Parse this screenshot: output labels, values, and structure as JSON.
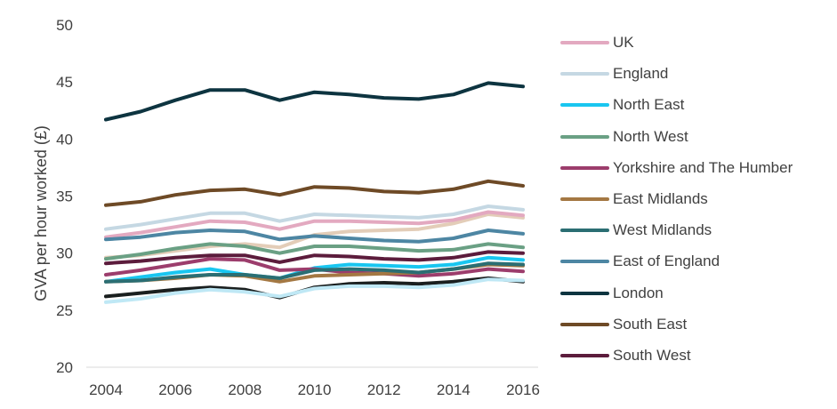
{
  "chart_data": {
    "type": "line",
    "ylabel": "GVA per hour worked (£)",
    "xlabel": "",
    "ylim": [
      20,
      50
    ],
    "yticks": [
      20,
      25,
      30,
      35,
      40,
      45,
      50
    ],
    "x": [
      2004,
      2005,
      2006,
      2007,
      2008,
      2009,
      2010,
      2011,
      2012,
      2013,
      2014,
      2015,
      2016
    ],
    "xticks": [
      2004,
      2006,
      2008,
      2010,
      2012,
      2014,
      2016
    ],
    "legend_position": "right",
    "grid": false,
    "series": [
      {
        "name": "UK",
        "color": "#E3A9C0",
        "values": [
          31.4,
          31.8,
          32.3,
          32.8,
          32.7,
          32.1,
          32.8,
          32.8,
          32.7,
          32.6,
          32.9,
          33.6,
          33.3
        ]
      },
      {
        "name": "England",
        "color": "#C5D8E3",
        "values": [
          32.1,
          32.5,
          33.0,
          33.5,
          33.5,
          32.8,
          33.4,
          33.3,
          33.2,
          33.1,
          33.4,
          34.1,
          33.8
        ]
      },
      {
        "name": "North East",
        "color": "#19C6F0",
        "values": [
          27.5,
          27.9,
          28.3,
          28.6,
          28.1,
          27.8,
          28.7,
          29.0,
          28.9,
          28.8,
          29.0,
          29.6,
          29.4
        ]
      },
      {
        "name": "North West",
        "color": "#6AA084",
        "values": [
          29.5,
          29.9,
          30.4,
          30.8,
          30.6,
          30.0,
          30.6,
          30.6,
          30.4,
          30.2,
          30.3,
          30.8,
          30.5
        ]
      },
      {
        "name": "Yorkshire and The Humber",
        "color": "#9C3D6C",
        "values": [
          28.1,
          28.5,
          29.0,
          29.5,
          29.4,
          28.5,
          28.6,
          28.3,
          28.2,
          28.0,
          28.2,
          28.6,
          28.4
        ]
      },
      {
        "name": "East Midlands",
        "color": "#A47843",
        "values": [
          27.5,
          27.6,
          27.8,
          28.1,
          28.0,
          27.5,
          28.0,
          28.1,
          28.2,
          28.3,
          28.6,
          29.0,
          28.9
        ]
      },
      {
        "name": "West Midlands",
        "color": "#2B6E73",
        "values": [
          27.5,
          27.6,
          27.9,
          28.1,
          28.1,
          27.8,
          28.5,
          28.6,
          28.5,
          28.3,
          28.6,
          29.1,
          29.0
        ]
      },
      {
        "name": "East of England",
        "color": "#4D86A3",
        "values": [
          31.2,
          31.4,
          31.8,
          32.0,
          31.9,
          31.2,
          31.5,
          31.3,
          31.1,
          31.0,
          31.3,
          32.0,
          31.7
        ]
      },
      {
        "name": "London",
        "color": "#0D3440",
        "values": [
          41.7,
          42.4,
          43.4,
          44.3,
          44.3,
          43.4,
          44.1,
          43.9,
          43.6,
          43.5,
          43.9,
          44.9,
          44.6
        ]
      },
      {
        "name": "South East",
        "color": "#6E4A26",
        "values": [
          34.2,
          34.5,
          35.1,
          35.5,
          35.6,
          35.1,
          35.8,
          35.7,
          35.4,
          35.3,
          35.6,
          36.3,
          35.9
        ]
      },
      {
        "name": "South West",
        "color": "#5C1C3C",
        "values": [
          29.1,
          29.3,
          29.6,
          29.8,
          29.8,
          29.2,
          29.8,
          29.7,
          29.5,
          29.4,
          29.6,
          30.1,
          30.0
        ]
      },
      {
        "name": "",
        "color": "#E3CDB8",
        "values": [
          29.6,
          29.8,
          30.2,
          30.6,
          30.8,
          30.5,
          31.6,
          31.9,
          32.0,
          32.1,
          32.6,
          33.4,
          33.1
        ]
      },
      {
        "name": "",
        "color": "#1A1F1F",
        "values": [
          26.2,
          26.5,
          26.8,
          27.0,
          26.8,
          26.1,
          27.0,
          27.3,
          27.4,
          27.3,
          27.5,
          27.8,
          27.5
        ]
      },
      {
        "name": "",
        "color": "#BFE8F5",
        "values": [
          25.7,
          26.0,
          26.5,
          26.8,
          26.6,
          26.2,
          26.9,
          27.1,
          27.1,
          27.0,
          27.2,
          27.7,
          27.6
        ]
      }
    ]
  }
}
